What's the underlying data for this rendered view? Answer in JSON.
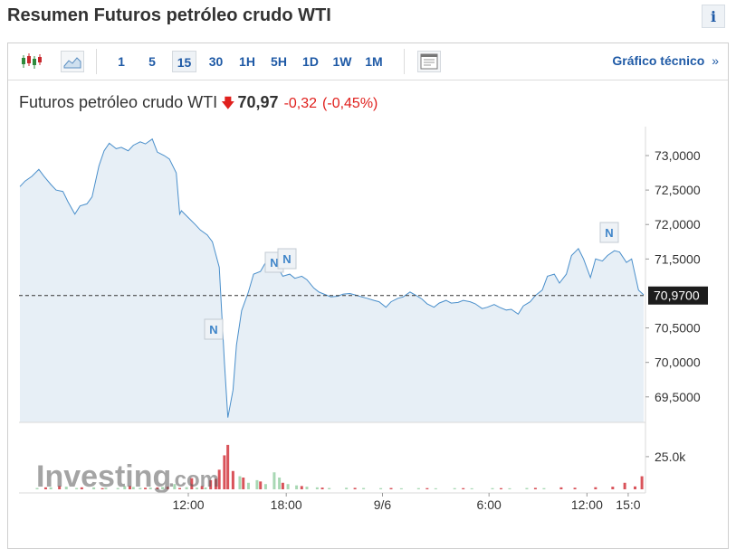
{
  "page": {
    "title": "Resumen Futuros petróleo crudo WTI",
    "info_label": "i"
  },
  "toolbar": {
    "chart_types": [
      {
        "name": "candlestick",
        "icon": "candlestick-icon"
      },
      {
        "name": "area",
        "icon": "area-chart-icon"
      }
    ],
    "timeframes": [
      "1",
      "5",
      "15",
      "30",
      "1H",
      "5H",
      "1D",
      "1W",
      "1M"
    ],
    "active_timeframe": "15",
    "panel_icon": "layout-panel-icon",
    "technical_link": "Gráfico técnico",
    "technical_link_arrow": "»"
  },
  "quote": {
    "name": "Futuros petróleo crudo WTI",
    "direction_icon": "arrow-down-icon",
    "price": "70,97",
    "change": "-0,32",
    "change_pct": "(-0,45%)"
  },
  "watermark": {
    "brand": "Investing",
    "suffix": ".com"
  },
  "colors": {
    "line": "#4a8fcb",
    "area": "#e7eff6",
    "up_volume": "#a8d8b4",
    "down_volume": "#d9535a",
    "accent": "#1f5aa6",
    "negative": "#e0201d"
  },
  "chart_data": {
    "type": "area",
    "title": "",
    "xlabel": "",
    "ylabel": "",
    "ylim": [
      69.13,
      73.42
    ],
    "y_ticks": [
      "73,0000",
      "72,5000",
      "72,0000",
      "71,5000",
      "70,5000",
      "70,0000",
      "69,5000"
    ],
    "y_tick_values": [
      73.0,
      72.5,
      72.0,
      71.5,
      70.5,
      70.0,
      69.5
    ],
    "x_ticks": [
      "12:00",
      "18:00",
      "9/6",
      "6:00",
      "12:00",
      "15:0"
    ],
    "x_tick_positions": [
      9.8,
      15.5,
      21.1,
      27.3,
      33.0,
      35.4
    ],
    "current_value": 70.97,
    "current_value_label": "70,9700",
    "grid": false,
    "series": [
      {
        "values": [
          [
            0.0,
            72.55
          ],
          [
            0.3,
            72.63
          ],
          [
            0.7,
            72.7
          ],
          [
            1.1,
            72.8
          ],
          [
            1.4,
            72.7
          ],
          [
            1.8,
            72.58
          ],
          [
            2.1,
            72.5
          ],
          [
            2.5,
            72.48
          ],
          [
            2.8,
            72.33
          ],
          [
            3.2,
            72.15
          ],
          [
            3.5,
            72.27
          ],
          [
            3.9,
            72.3
          ],
          [
            4.2,
            72.4
          ],
          [
            4.6,
            72.85
          ],
          [
            4.9,
            73.07
          ],
          [
            5.2,
            73.18
          ],
          [
            5.6,
            73.1
          ],
          [
            5.9,
            73.12
          ],
          [
            6.3,
            73.07
          ],
          [
            6.6,
            73.15
          ],
          [
            7.0,
            73.2
          ],
          [
            7.3,
            73.17
          ],
          [
            7.7,
            73.24
          ],
          [
            8.0,
            73.05
          ],
          [
            8.4,
            73.0
          ],
          [
            8.7,
            72.95
          ],
          [
            9.1,
            72.75
          ],
          [
            9.3,
            72.15
          ],
          [
            9.4,
            72.2
          ],
          [
            9.8,
            72.1
          ],
          [
            10.2,
            72.0
          ],
          [
            10.5,
            71.92
          ],
          [
            10.9,
            71.85
          ],
          [
            11.2,
            71.75
          ],
          [
            11.6,
            71.38
          ],
          [
            11.9,
            70.0
          ],
          [
            12.1,
            69.2
          ],
          [
            12.4,
            69.6
          ],
          [
            12.6,
            70.25
          ],
          [
            12.9,
            70.75
          ],
          [
            13.3,
            71.02
          ],
          [
            13.6,
            71.28
          ],
          [
            14.0,
            71.32
          ],
          [
            14.3,
            71.45
          ],
          [
            14.6,
            71.48
          ],
          [
            15.0,
            71.38
          ],
          [
            15.3,
            71.25
          ],
          [
            15.7,
            71.28
          ],
          [
            16.0,
            71.22
          ],
          [
            16.4,
            71.25
          ],
          [
            16.7,
            71.2
          ],
          [
            17.1,
            71.08
          ],
          [
            17.4,
            71.02
          ],
          [
            17.8,
            70.98
          ],
          [
            18.1,
            70.95
          ],
          [
            18.5,
            70.96
          ],
          [
            18.8,
            70.99
          ],
          [
            19.2,
            71.0
          ],
          [
            19.5,
            70.98
          ],
          [
            19.9,
            70.95
          ],
          [
            20.2,
            70.93
          ],
          [
            20.6,
            70.9
          ],
          [
            20.9,
            70.88
          ],
          [
            21.3,
            70.8
          ],
          [
            21.6,
            70.88
          ],
          [
            22.0,
            70.93
          ],
          [
            22.3,
            70.95
          ],
          [
            22.7,
            71.02
          ],
          [
            23.0,
            70.98
          ],
          [
            23.4,
            70.92
          ],
          [
            23.7,
            70.85
          ],
          [
            24.1,
            70.8
          ],
          [
            24.4,
            70.86
          ],
          [
            24.8,
            70.9
          ],
          [
            25.1,
            70.86
          ],
          [
            25.5,
            70.87
          ],
          [
            25.8,
            70.9
          ],
          [
            26.2,
            70.88
          ],
          [
            26.5,
            70.85
          ],
          [
            26.9,
            70.78
          ],
          [
            27.2,
            70.8
          ],
          [
            27.6,
            70.84
          ],
          [
            27.9,
            70.8
          ],
          [
            28.3,
            70.76
          ],
          [
            28.6,
            70.77
          ],
          [
            29.0,
            70.7
          ],
          [
            29.3,
            70.82
          ],
          [
            29.7,
            70.88
          ],
          [
            30.0,
            70.97
          ],
          [
            30.4,
            71.05
          ],
          [
            30.7,
            71.25
          ],
          [
            31.1,
            71.28
          ],
          [
            31.4,
            71.15
          ],
          [
            31.8,
            71.28
          ],
          [
            32.1,
            71.55
          ],
          [
            32.5,
            71.65
          ],
          [
            32.8,
            71.5
          ],
          [
            33.2,
            71.23
          ],
          [
            33.5,
            71.5
          ],
          [
            33.9,
            71.47
          ],
          [
            34.2,
            71.55
          ],
          [
            34.6,
            71.62
          ],
          [
            34.9,
            71.6
          ],
          [
            35.3,
            71.45
          ],
          [
            35.6,
            71.5
          ],
          [
            36.0,
            71.05
          ],
          [
            36.3,
            70.98
          ]
        ]
      }
    ],
    "volume": {
      "ytick_label": "25.0k",
      "ytick_value": 25000,
      "ylim": [
        0,
        45000
      ],
      "up": [
        [
          1.0,
          1000
        ],
        [
          1.8,
          1500
        ],
        [
          2.7,
          2000
        ],
        [
          3.3,
          1000
        ],
        [
          4.3,
          1500
        ],
        [
          5.0,
          1200
        ],
        [
          5.7,
          1000
        ],
        [
          6.1,
          2500
        ],
        [
          6.6,
          1800
        ],
        [
          7.0,
          1100
        ],
        [
          7.6,
          1300
        ],
        [
          8.3,
          1800
        ],
        [
          9.0,
          4000
        ],
        [
          9.7,
          1600
        ],
        [
          10.3,
          1200
        ],
        [
          10.8,
          1400
        ],
        [
          12.8,
          10000
        ],
        [
          13.3,
          5000
        ],
        [
          13.8,
          7000
        ],
        [
          14.3,
          4000
        ],
        [
          14.8,
          13000
        ],
        [
          15.1,
          9000
        ],
        [
          15.6,
          4000
        ],
        [
          16.1,
          3000
        ],
        [
          16.7,
          2000
        ],
        [
          17.3,
          1500
        ],
        [
          18.0,
          1000
        ],
        [
          19.0,
          1200
        ],
        [
          20.0,
          1000
        ],
        [
          21.0,
          900
        ],
        [
          22.2,
          800
        ],
        [
          23.2,
          900
        ],
        [
          24.2,
          800
        ],
        [
          25.3,
          900
        ],
        [
          26.3,
          800
        ],
        [
          27.5,
          900
        ],
        [
          28.5,
          800
        ],
        [
          29.5,
          1000
        ],
        [
          30.5,
          900
        ]
      ],
      "down": [
        [
          1.5,
          1500
        ],
        [
          2.3,
          2500
        ],
        [
          3.6,
          1500
        ],
        [
          4.8,
          900
        ],
        [
          6.4,
          2500
        ],
        [
          7.3,
          1200
        ],
        [
          8.0,
          1500
        ],
        [
          8.6,
          2000
        ],
        [
          9.3,
          1000
        ],
        [
          10.0,
          8500
        ],
        [
          10.6,
          2500
        ],
        [
          11.1,
          7000
        ],
        [
          11.4,
          8000
        ],
        [
          11.6,
          15000
        ],
        [
          11.9,
          26000
        ],
        [
          12.1,
          34000
        ],
        [
          12.4,
          14000
        ],
        [
          13.0,
          9000
        ],
        [
          14.0,
          6000
        ],
        [
          15.3,
          5000
        ],
        [
          16.4,
          2500
        ],
        [
          17.6,
          1300
        ],
        [
          19.5,
          1100
        ],
        [
          21.6,
          1000
        ],
        [
          23.7,
          900
        ],
        [
          25.8,
          900
        ],
        [
          28.0,
          900
        ],
        [
          30.0,
          1100
        ],
        [
          31.5,
          1500
        ],
        [
          32.3,
          1200
        ],
        [
          33.5,
          1600
        ],
        [
          34.5,
          2000
        ],
        [
          35.2,
          5000
        ],
        [
          35.8,
          2200
        ],
        [
          36.2,
          10000
        ]
      ]
    }
  }
}
